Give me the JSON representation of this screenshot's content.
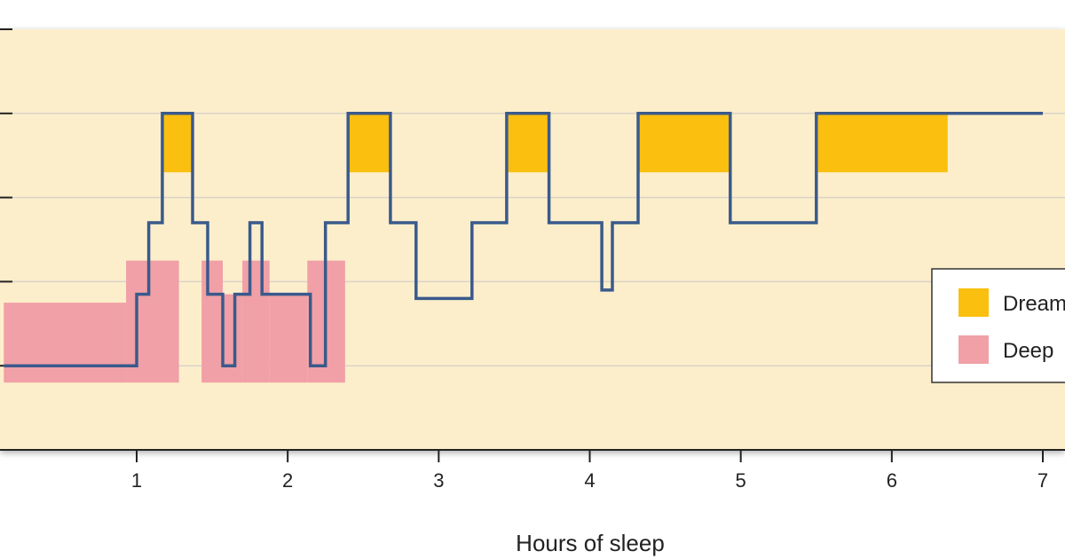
{
  "chart_data": {
    "type": "line",
    "title": "",
    "xlabel": "Hours of sleep",
    "ylabel": "",
    "xlim": [
      0,
      7.15
    ],
    "ylim": [
      0,
      5
    ],
    "x_ticks": [
      1,
      2,
      3,
      4,
      5,
      6,
      7
    ],
    "x_tick_labels": [
      "1",
      "2",
      "3",
      "4",
      "5",
      "6",
      "7"
    ],
    "grid": true,
    "legend_position": "right",
    "legend": [
      {
        "label": "Dream",
        "color": "#fbbf0f"
      },
      {
        "label": "Deep",
        "color": "#f0a0a6"
      }
    ],
    "colors": {
      "plot_background": "#fdeecb",
      "line": "#3a5a8c",
      "gridline": "#d9d3c8"
    },
    "series": [
      {
        "x": [
          0.12,
          1.0,
          1.0,
          1.08,
          1.08,
          1.17,
          1.17,
          1.37,
          1.37,
          1.47,
          1.47,
          1.57,
          1.57,
          1.65,
          1.65,
          1.75,
          1.75,
          1.83,
          1.83,
          2.15,
          2.15,
          2.25,
          2.25,
          2.4,
          2.4,
          2.68,
          2.68,
          2.85,
          2.85,
          3.22,
          3.22,
          3.45,
          3.45,
          3.73,
          3.73,
          4.08,
          4.08,
          4.15,
          4.15,
          4.32,
          4.32,
          4.93,
          4.93,
          5.5,
          5.5,
          7.0
        ],
        "y": [
          1,
          1,
          1.85,
          1.85,
          2.7,
          2.7,
          4,
          4,
          2.7,
          2.7,
          1.85,
          1.85,
          1,
          1,
          1.85,
          1.85,
          2.7,
          2.7,
          1.85,
          1.85,
          1,
          1,
          2.7,
          2.7,
          4,
          4,
          2.7,
          2.7,
          1.8,
          1.8,
          2.7,
          2.7,
          4,
          4,
          2.7,
          2.7,
          1.9,
          1.9,
          2.7,
          2.7,
          4,
          4,
          2.7,
          2.7,
          4,
          4
        ]
      }
    ],
    "dream_regions": [
      {
        "x0": 1.17,
        "x1": 1.37,
        "y0": 3.3,
        "y1": 4
      },
      {
        "x0": 2.4,
        "x1": 2.68,
        "y0": 3.3,
        "y1": 4
      },
      {
        "x0": 3.45,
        "x1": 3.73,
        "y0": 3.3,
        "y1": 4
      },
      {
        "x0": 4.32,
        "x1": 4.93,
        "y0": 3.3,
        "y1": 4
      },
      {
        "x0": 5.5,
        "x1": 6.37,
        "y0": 3.3,
        "y1": 4
      }
    ],
    "deep_regions": [
      {
        "x0": 0.12,
        "x1": 0.93,
        "y0": 0.8,
        "y1": 1.75
      },
      {
        "x0": 0.93,
        "x1": 1.28,
        "y0": 0.8,
        "y1": 2.25
      },
      {
        "x0": 1.43,
        "x1": 1.57,
        "y0": 0.8,
        "y1": 2.25
      },
      {
        "x0": 1.57,
        "x1": 1.7,
        "y0": 0.8,
        "y1": 1.85
      },
      {
        "x0": 1.7,
        "x1": 1.88,
        "y0": 0.8,
        "y1": 2.25
      },
      {
        "x0": 1.88,
        "x1": 2.13,
        "y0": 0.8,
        "y1": 1.85
      },
      {
        "x0": 2.13,
        "x1": 2.38,
        "y0": 0.8,
        "y1": 2.25
      }
    ]
  }
}
